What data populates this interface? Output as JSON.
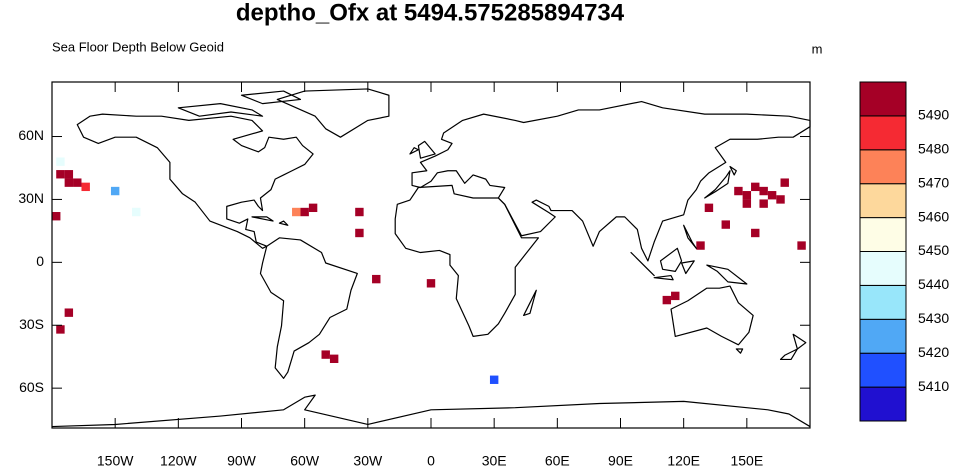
{
  "chart_data": {
    "type": "map",
    "title": "deptho_Ofx at 5494.575285894734",
    "subtitle": "Sea Floor Depth Below Geoid",
    "units": "m",
    "xlim": [
      -180,
      180
    ],
    "ylim": [
      -79,
      86
    ],
    "xticks": [
      {
        "value": -150,
        "label": "150W"
      },
      {
        "value": -120,
        "label": "120W"
      },
      {
        "value": -90,
        "label": "90W"
      },
      {
        "value": -60,
        "label": "60W"
      },
      {
        "value": -30,
        "label": "30W"
      },
      0,
      {
        "value": 30,
        "label": "30E"
      },
      {
        "value": 60,
        "label": "60E"
      },
      {
        "value": 90,
        "label": "90E"
      },
      {
        "value": 120,
        "label": "120E"
      },
      {
        "value": 150,
        "label": "150E"
      }
    ],
    "yticks": [
      {
        "value": -60,
        "label": "60S"
      },
      {
        "value": -30,
        "label": "30S"
      },
      0,
      {
        "value": 30,
        "label": "30N"
      },
      {
        "value": 60,
        "label": "60N"
      }
    ],
    "colorbar": {
      "levels": [
        5410,
        5420,
        5430,
        5440,
        5450,
        5460,
        5470,
        5480,
        5490
      ],
      "colors": [
        "#2010d0",
        "#2050ff",
        "#50a8f5",
        "#98e6fa",
        "#e6fdfd",
        "#fefde6",
        "#fdd89c",
        "#fd8258",
        "#f52a33",
        "#a50026"
      ]
    },
    "cells": {
      "lon": [
        -176,
        -172,
        -172,
        -168,
        -164,
        -178,
        -172,
        -176,
        -60,
        -56,
        -64,
        -34,
        -34,
        -26,
        0,
        -50,
        -46,
        30,
        116,
        112,
        132,
        140,
        128,
        146,
        150,
        154,
        158,
        162,
        150,
        158,
        166,
        168,
        154,
        176,
        -176,
        -150,
        -140
      ],
      "lat": [
        42,
        42,
        38,
        38,
        36,
        22,
        -24,
        -32,
        24,
        26,
        24,
        24,
        14,
        -8,
        -10,
        -44,
        -46,
        -56,
        -16,
        -18,
        26,
        18,
        8,
        34,
        32,
        36,
        34,
        32,
        28,
        28,
        30,
        38,
        14,
        8,
        48,
        34,
        24
      ],
      "values": [
        5495,
        5495,
        5495,
        5495,
        5485,
        5495,
        5495,
        5495,
        5495,
        5495,
        5475,
        5495,
        5495,
        5495,
        5495,
        5495,
        5495,
        5415,
        5495,
        5495,
        5495,
        5495,
        5495,
        5495,
        5495,
        5495,
        5495,
        5495,
        5495,
        5495,
        5495,
        5495,
        5495,
        5495,
        5440,
        5420,
        5440
      ]
    }
  }
}
